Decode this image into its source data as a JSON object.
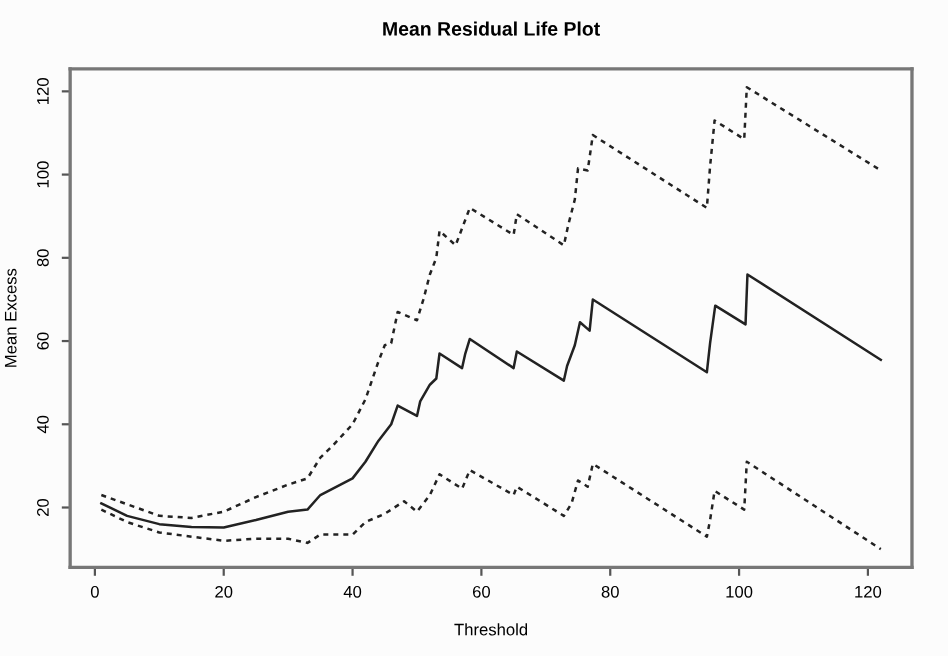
{
  "chart_data": {
    "type": "line",
    "title": "Mean Residual Life Plot",
    "xlabel": "Threshold",
    "ylabel": "Mean Excess",
    "xlim": [
      -3.84,
      126.84
    ],
    "ylim": [
      5.6,
      125.4
    ],
    "xticks": [
      0,
      20,
      40,
      60,
      80,
      100,
      120
    ],
    "yticks": [
      20,
      40,
      60,
      80,
      100,
      120
    ],
    "grid": false,
    "legend": false,
    "marker": "none",
    "series": [
      {
        "color": "#222222",
        "line_style": "solid",
        "x": [
          1,
          5,
          10,
          15,
          20,
          25,
          30,
          33,
          35,
          40,
          42,
          44,
          46,
          47,
          50,
          50.5,
          52,
          53,
          53.5,
          57,
          57.5,
          58.2,
          65,
          65.5,
          72.8,
          73.3,
          74.5,
          75.3,
          76.8,
          77.3,
          95,
          95.5,
          96.3,
          101,
          101.3,
          122
        ],
        "values": [
          21,
          18,
          16,
          15.3,
          15.2,
          17,
          19,
          19.5,
          23,
          27,
          31,
          36,
          40,
          44.5,
          42,
          45.5,
          49.5,
          51,
          57,
          53.5,
          57,
          60.5,
          53.5,
          57.5,
          50.5,
          54,
          59,
          64.5,
          62.5,
          70,
          52.5,
          59.5,
          68.5,
          64,
          76,
          55.5
        ]
      },
      {
        "color": "#222222",
        "line_style": "dashed",
        "x": [
          1,
          10,
          15,
          20,
          25,
          30,
          33,
          35,
          37,
          40,
          42,
          44,
          45,
          46,
          47,
          50,
          51,
          52,
          53,
          53.5,
          56,
          58.2,
          65,
          65.5,
          72.8,
          73.5,
          74.5,
          75,
          76.5,
          77.3,
          95,
          95.5,
          96.2,
          100.8,
          101.2,
          122
        ],
        "values": [
          23,
          18,
          17.5,
          19,
          22.5,
          25.5,
          27,
          32,
          35,
          40,
          46,
          55,
          59,
          59.5,
          67,
          65,
          70,
          76,
          80,
          86.5,
          83,
          92,
          85.5,
          90.5,
          83,
          88,
          94,
          101.5,
          101,
          109.5,
          92,
          102,
          113,
          108.5,
          121,
          101
        ]
      },
      {
        "color": "#222222",
        "line_style": "dashed",
        "x": [
          1,
          5,
          10,
          15,
          20,
          25,
          30,
          33,
          35,
          40,
          42,
          45,
          48,
          50,
          52,
          53.5,
          57,
          58.2,
          65,
          65.5,
          72.8,
          74,
          75,
          76.5,
          77.3,
          95,
          95.5,
          96.2,
          100.8,
          101.2,
          122
        ],
        "values": [
          19.5,
          16.5,
          14,
          13,
          12,
          12.5,
          12.5,
          11.5,
          13.5,
          13.5,
          16.5,
          18.5,
          21.5,
          19,
          23,
          28,
          24.5,
          29,
          23,
          25,
          18,
          21,
          26.5,
          25,
          30.5,
          13,
          17,
          24,
          19.5,
          31,
          10
        ]
      }
    ]
  }
}
